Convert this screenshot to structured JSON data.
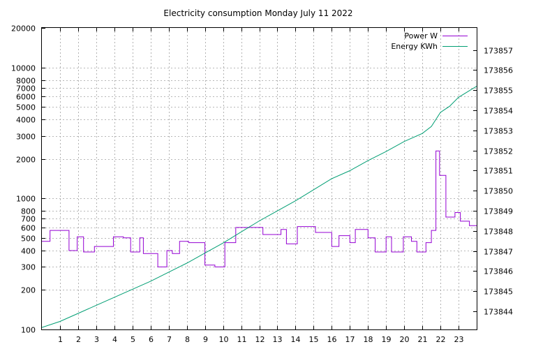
{
  "chart_data": {
    "type": "line",
    "title": "Electricity consumption Monday July 11 2022",
    "x": {
      "range": [
        0,
        24
      ],
      "ticks": [
        1,
        2,
        3,
        4,
        5,
        6,
        7,
        8,
        9,
        10,
        11,
        12,
        13,
        14,
        15,
        16,
        17,
        18,
        19,
        20,
        21,
        22,
        23
      ],
      "tick_labels": [
        "1",
        "2",
        "3",
        "4",
        "5",
        "6",
        "7",
        "8",
        "9",
        "10",
        "11",
        "12",
        "13",
        "14",
        "15",
        "16",
        "17",
        "18",
        "19",
        "20",
        "21",
        "22",
        "23"
      ]
    },
    "y_left": {
      "scale": "log",
      "range": [
        100,
        20000
      ],
      "ticks": [
        100,
        200,
        300,
        400,
        500,
        600,
        700,
        800,
        1000,
        2000,
        3000,
        4000,
        5000,
        6000,
        7000,
        8000,
        10000,
        20000
      ],
      "tick_labels": [
        "100",
        "200",
        "300",
        "400",
        "500",
        "600",
        "700",
        "800",
        "1000",
        "2000",
        "3000",
        "4000",
        "5000",
        "6000",
        "7000",
        "8000",
        "10000",
        "20000"
      ]
    },
    "y_right": {
      "scale": "linear",
      "range": [
        173843.1,
        173858.1
      ],
      "ticks": [
        173844,
        173845,
        173846,
        173847,
        173848,
        173849,
        173850,
        173851,
        173852,
        173853,
        173854,
        173855,
        173856,
        173857
      ],
      "tick_labels": [
        "173844",
        "173845",
        "173846",
        "173847",
        "173848",
        "173849",
        "173850",
        "173851",
        "173852",
        "173853",
        "173854",
        "173855",
        "173856",
        "173857"
      ]
    },
    "grid": true,
    "legend": "top-right",
    "series": [
      {
        "name": "Power W",
        "color": "#9400d3",
        "axis": "left",
        "step": true,
        "points": [
          [
            0,
            470
          ],
          [
            0.45,
            570
          ],
          [
            1.5,
            400
          ],
          [
            1.95,
            510
          ],
          [
            2.3,
            390
          ],
          [
            2.9,
            430
          ],
          [
            3.6,
            430
          ],
          [
            3.95,
            510
          ],
          [
            4.5,
            500
          ],
          [
            4.9,
            390
          ],
          [
            5.4,
            500
          ],
          [
            5.6,
            380
          ],
          [
            6.4,
            300
          ],
          [
            6.9,
            400
          ],
          [
            7.2,
            380
          ],
          [
            7.6,
            470
          ],
          [
            8.1,
            460
          ],
          [
            9.0,
            310
          ],
          [
            9.55,
            300
          ],
          [
            10.1,
            460
          ],
          [
            10.7,
            600
          ],
          [
            12.2,
            530
          ],
          [
            13.2,
            580
          ],
          [
            13.5,
            450
          ],
          [
            14.1,
            610
          ],
          [
            15.1,
            550
          ],
          [
            16.0,
            430
          ],
          [
            16.4,
            520
          ],
          [
            17.0,
            460
          ],
          [
            17.3,
            580
          ],
          [
            18.0,
            500
          ],
          [
            18.4,
            390
          ],
          [
            19.0,
            510
          ],
          [
            19.3,
            390
          ],
          [
            19.95,
            510
          ],
          [
            20.4,
            470
          ],
          [
            20.7,
            390
          ],
          [
            21.2,
            460
          ],
          [
            21.5,
            570
          ],
          [
            21.75,
            2300
          ],
          [
            21.95,
            1500
          ],
          [
            22.3,
            720
          ],
          [
            22.8,
            780
          ],
          [
            23.1,
            670
          ],
          [
            23.6,
            620
          ],
          [
            24,
            620
          ]
        ]
      },
      {
        "name": "Energy KWh",
        "color": "#009e73",
        "axis": "right",
        "step": false,
        "points": [
          [
            0,
            173843.2
          ],
          [
            1,
            173843.5
          ],
          [
            2,
            173843.9
          ],
          [
            3,
            173844.3
          ],
          [
            4,
            173844.7
          ],
          [
            5,
            173845.1
          ],
          [
            6,
            173845.5
          ],
          [
            7,
            173845.95
          ],
          [
            8,
            173846.4
          ],
          [
            9,
            173846.9
          ],
          [
            10,
            173847.4
          ],
          [
            11,
            173847.95
          ],
          [
            12,
            173848.5
          ],
          [
            13,
            173849.0
          ],
          [
            14,
            173849.5
          ],
          [
            15,
            173850.05
          ],
          [
            16,
            173850.6
          ],
          [
            17,
            173851.0
          ],
          [
            18,
            173851.5
          ],
          [
            19,
            173851.95
          ],
          [
            20,
            173852.45
          ],
          [
            21,
            173852.85
          ],
          [
            21.5,
            173853.2
          ],
          [
            22,
            173853.9
          ],
          [
            22.5,
            173854.2
          ],
          [
            23,
            173854.65
          ],
          [
            24,
            173855.2
          ]
        ]
      }
    ]
  }
}
